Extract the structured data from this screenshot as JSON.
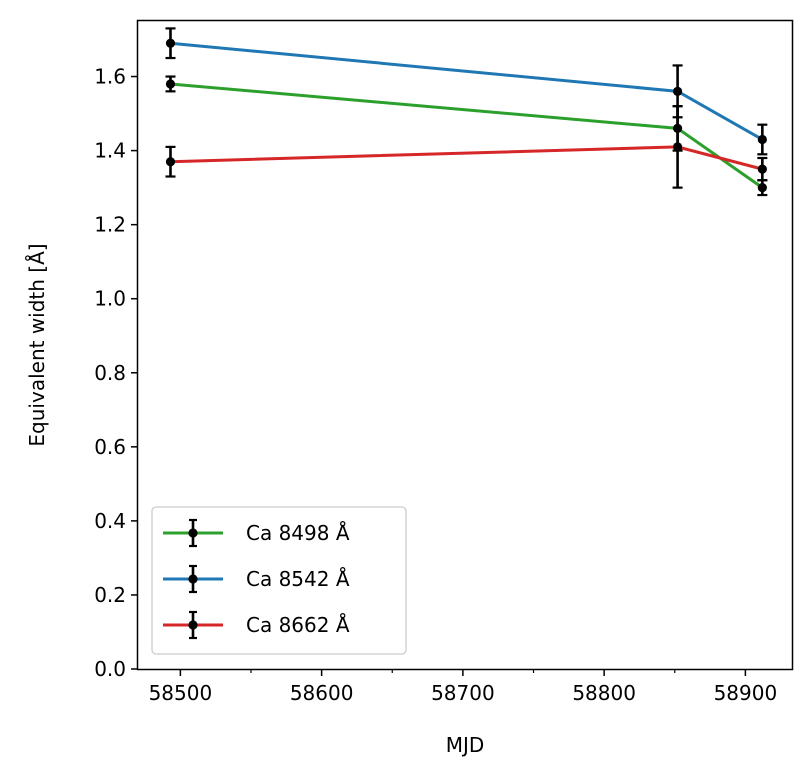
{
  "chart_data": {
    "type": "line",
    "title": "",
    "xlabel": "MJD",
    "ylabel": "Equivalent width [Å]",
    "xlim": [
      58470,
      58933
    ],
    "ylim": [
      0.0,
      1.75
    ],
    "xticks": [
      58500,
      58600,
      58700,
      58800,
      58900
    ],
    "xtick_labels": [
      "58500",
      "58600",
      "58700",
      "58800",
      "58900"
    ],
    "xminor_ticks": [
      58550,
      58650,
      58750,
      58850
    ],
    "yticks": [
      0.0,
      0.2,
      0.4,
      0.6,
      0.8,
      1.0,
      1.2,
      1.4,
      1.6
    ],
    "ytick_labels": [
      "0.0",
      "0.2",
      "0.4",
      "0.6",
      "0.8",
      "1.0",
      "1.2",
      "1.4",
      "1.6"
    ],
    "grid": false,
    "legend_position": "lower-left",
    "series": [
      {
        "name": "Ca 8498 Å",
        "color": "#2ca02c",
        "x": [
          58493,
          58852,
          58912
        ],
        "y": [
          1.58,
          1.46,
          1.3
        ],
        "yerr": [
          0.02,
          0.06,
          0.02
        ]
      },
      {
        "name": "Ca 8542 Å",
        "color": "#1f77b4",
        "x": [
          58493,
          58852,
          58912
        ],
        "y": [
          1.69,
          1.56,
          1.43
        ],
        "yerr": [
          0.04,
          0.07,
          0.04
        ]
      },
      {
        "name": "Ca 8662 Å",
        "color": "#d62728",
        "x": [
          58493,
          58852,
          58912
        ],
        "y": [
          1.37,
          1.41,
          1.35
        ],
        "yerr": [
          0.04,
          0.11,
          0.03
        ]
      }
    ],
    "marker_color": "#000000"
  }
}
